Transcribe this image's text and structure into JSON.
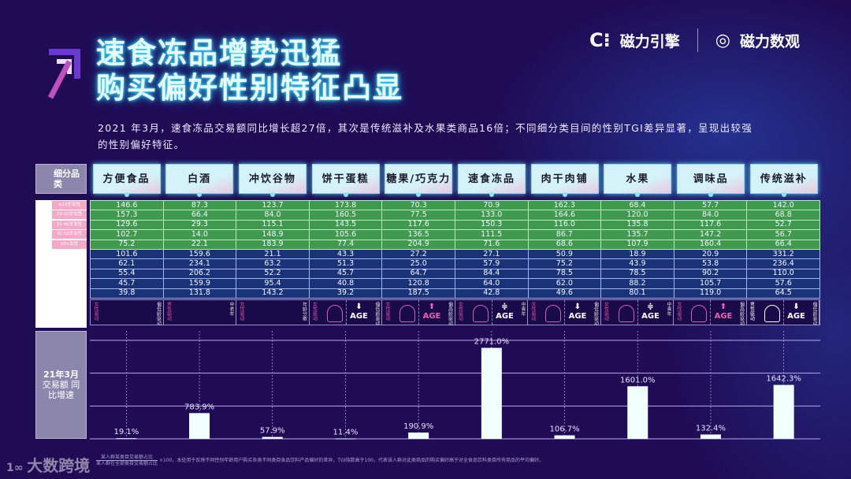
{
  "title": {
    "line1": "速食冻品增势迅猛",
    "line2": "购买偏好性别特征凸显"
  },
  "subtitle": "2021 年3月，速食冻品交易额同比增长超27倍，其次是传统滋补及水果类商品16倍；不同细分类目间的性别TGI差异显著，呈现出较强的性别偏好特征。",
  "logos": {
    "left": "磁力引擎",
    "right": "磁力数观"
  },
  "table": {
    "corner": "细分品类",
    "headers": [
      "方便食品",
      "白酒",
      "冲饮谷物",
      "饼干蛋糕",
      "糖果/巧克力",
      "速食冻品",
      "肉干肉铺",
      "水果",
      "调味品",
      "传统滋补"
    ],
    "age_labels": [
      "≤22岁女性",
      "23-30岁女性",
      "31-40岁女性",
      "41-50岁女性",
      "50+女性"
    ],
    "rows": [
      [
        "146.6",
        "87.3",
        "123.7",
        "173.8",
        "70.3",
        "70.9",
        "162.3",
        "68.4",
        "57.7",
        "142.0"
      ],
      [
        "157.3",
        "66.4",
        "84.0",
        "160.5",
        "77.5",
        "133.0",
        "164.6",
        "120.0",
        "84.0",
        "68.8"
      ],
      [
        "129.6",
        "29.3",
        "115.1",
        "143.5",
        "117.6",
        "150.3",
        "116.0",
        "135.8",
        "117.6",
        "52.7"
      ],
      [
        "102.7",
        "14.0",
        "148.9",
        "105.6",
        "136.5",
        "111.5",
        "86.7",
        "135.7",
        "147.2",
        "56.7"
      ],
      [
        "75.2",
        "22.1",
        "183.9",
        "77.4",
        "204.9",
        "71.6",
        "68.6",
        "107.9",
        "160.4",
        "66.4"
      ],
      [
        "101.6",
        "159.6",
        "21.1",
        "43.3",
        "27.2",
        "27.1",
        "50.9",
        "18.9",
        "20.9",
        "331.2"
      ],
      [
        "62.1",
        "234.1",
        "63.2",
        "51.3",
        "25.0",
        "57.9",
        "75.2",
        "43.9",
        "53.8",
        "236.4"
      ],
      [
        "55.4",
        "206.2",
        "52.2",
        "45.7",
        "64.7",
        "84.4",
        "78.5",
        "78.5",
        "90.2",
        "110.0"
      ],
      [
        "45.7",
        "159.9",
        "95.4",
        "40.8",
        "120.8",
        "64.0",
        "62.0",
        "88.2",
        "105.7",
        "57.6"
      ],
      [
        "39.8",
        "131.8",
        "143.2",
        "39.2",
        "187.5",
        "42.8",
        "49.6",
        "80.1",
        "119.0",
        "64.5"
      ]
    ]
  },
  "preferences": [
    {
      "gender_label": "女性驱动",
      "age_label": "偏低龄驱动",
      "gender": "",
      "age": ""
    },
    {
      "gender_label": "男性驱动",
      "age_label": "中老年",
      "gender": "",
      "age": ""
    },
    {
      "gender_label": "女性驱动",
      "age_label": "年龄分散",
      "gender": "",
      "age": ""
    },
    {
      "gender_label": "女性驱动",
      "age_label": "偏低龄驱动",
      "gender": "female",
      "age": "down"
    },
    {
      "gender_label": "女性驱动",
      "age_label": "偏高龄驱动",
      "gender": "female",
      "age": "up"
    },
    {
      "gender_label": "女性驱动",
      "age_label": "中青年",
      "gender": "female",
      "age": "mid"
    },
    {
      "gender_label": "女性驱动",
      "age_label": "偏低龄驱动",
      "gender": "female",
      "age": "down"
    },
    {
      "gender_label": "女性驱动",
      "age_label": "中青年",
      "gender": "female",
      "age": "mid"
    },
    {
      "gender_label": "女性驱动",
      "age_label": "偏高龄驱动",
      "gender": "female",
      "age": "up"
    },
    {
      "gender_label": "男性驱动",
      "age_label": "偏低龄驱动",
      "gender": "male",
      "age": "down"
    }
  ],
  "age_text": "AGE",
  "chart_data": {
    "type": "bar",
    "ylabel": "21年3月交易额同比增速",
    "categories": [
      "方便食品",
      "白酒",
      "冲饮谷物",
      "饼干蛋糕",
      "糖果/巧克力",
      "速食冻品",
      "肉干肉铺",
      "水果",
      "调味品",
      "传统滋补"
    ],
    "values": [
      19.1,
      783.9,
      57.9,
      11.4,
      190.9,
      2771.0,
      106.7,
      1601.0,
      132.4,
      1642.3
    ],
    "labels": [
      "19.1%",
      "783.9%",
      "57.9%",
      "11.4%",
      "190.9%",
      "2771.0%",
      "106.7%",
      "1601.0%",
      "132.4%",
      "1642.3%"
    ],
    "ylim": [
      0,
      3000
    ],
    "grid": true
  },
  "chart_label": {
    "l1": "21年3月",
    "l2": "交易额 同",
    "l3": "比增速"
  },
  "footnote": {
    "formula_top": "某人群某类目交易额占比",
    "formula_bottom": "某人群在全部类目交易额占比",
    "text": "×100，本处用于反映不同性别年龄用户购买各类不同类目食品饮料产品偏好的差异，TGI指数高于100，代表该人群对此类商品的购买偏好高于对全食品饮料类目所有商品的平均偏好。"
  },
  "watermark": "大数跨境",
  "colors": {
    "background": "#1f0c55",
    "green_rows": "#3f9a4f",
    "blue_rows": "#1a3278",
    "female": "#e050a0",
    "bar": "#f2ffff"
  }
}
